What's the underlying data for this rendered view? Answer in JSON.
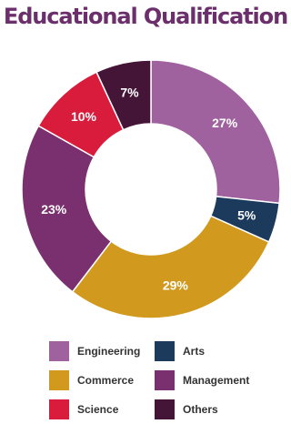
{
  "chart_data": {
    "type": "pie",
    "title": "Educational Qualification",
    "categories": [
      "Engineering",
      "Arts",
      "Commerce",
      "Management",
      "Science",
      "Others"
    ],
    "values": [
      27,
      5,
      29,
      23,
      10,
      7
    ],
    "value_labels": [
      "27%",
      "5%",
      "29%",
      "23%",
      "10%",
      "7%"
    ],
    "colors": [
      "#a0619f",
      "#1b3a5c",
      "#d19a1f",
      "#7a2f6f",
      "#d91c3c",
      "#451538"
    ],
    "hole": "donut",
    "legend_position": "bottom"
  },
  "legend": {
    "items": [
      {
        "label": "Engineering",
        "color": "#a0619f"
      },
      {
        "label": "Arts",
        "color": "#1b3a5c"
      },
      {
        "label": "Commerce",
        "color": "#d19a1f"
      },
      {
        "label": "Management",
        "color": "#7a2f6f"
      },
      {
        "label": "Science",
        "color": "#d91c3c"
      },
      {
        "label": "Others",
        "color": "#451538"
      }
    ]
  }
}
